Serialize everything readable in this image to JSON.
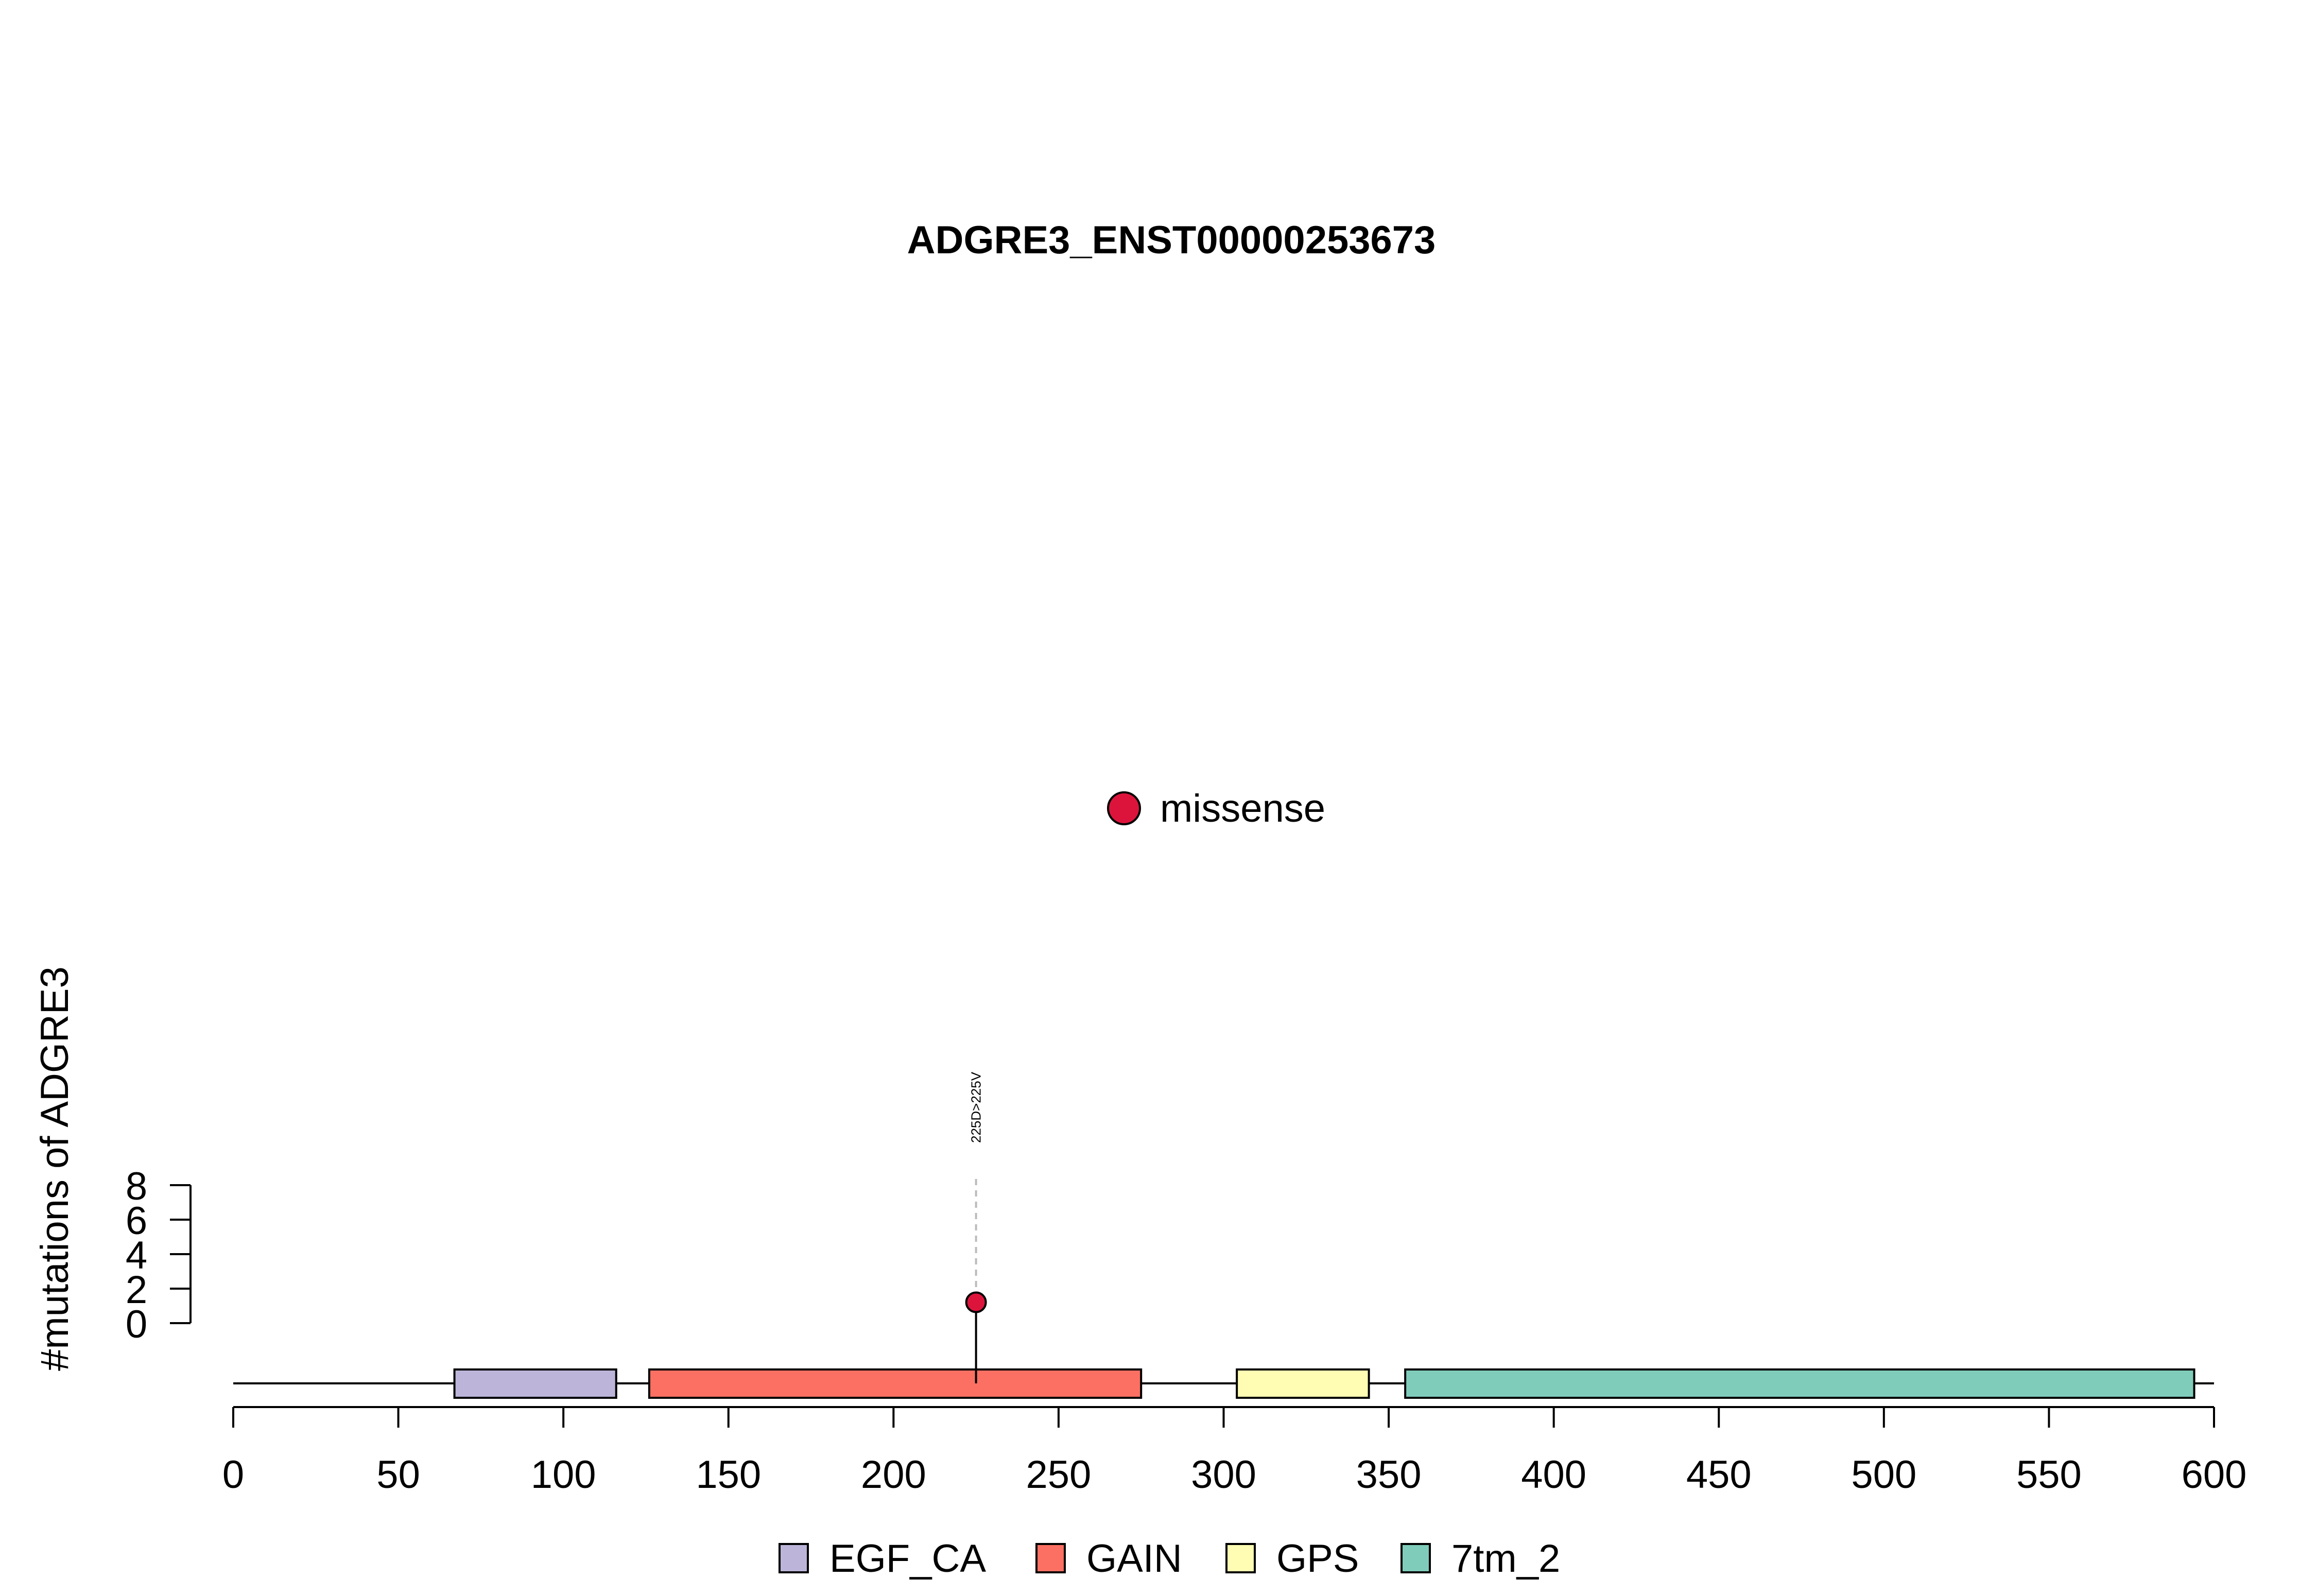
{
  "chart_data": {
    "type": "scatter",
    "title": "ADGRE3_ENST00000253673",
    "ylabel": "#mutations of ADGRE3",
    "xlabel": "",
    "xlim": [
      0,
      600
    ],
    "xticks": [
      0,
      50,
      100,
      150,
      200,
      250,
      300,
      350,
      400,
      450,
      500,
      550,
      600
    ],
    "ylim": [
      0,
      8
    ],
    "yticks": [
      0,
      2,
      4,
      6,
      8
    ],
    "protein_length": 600,
    "domains": [
      {
        "name": "EGF_CA",
        "start": 67,
        "end": 116,
        "color": "#bcb5d9"
      },
      {
        "name": "GAIN",
        "start": 126,
        "end": 275,
        "color": "#fb7062"
      },
      {
        "name": "GPS",
        "start": 304,
        "end": 344,
        "color": "#fefdb3"
      },
      {
        "name": "7tm_2",
        "start": 355,
        "end": 594,
        "color": "#80ccbb"
      }
    ],
    "mutations": [
      {
        "position": 225,
        "count": 1,
        "label": "225D>225V",
        "type": "missense",
        "color": "#dc143c"
      }
    ],
    "mutation_legend": [
      {
        "label": "missense",
        "color": "#dc143c"
      }
    ],
    "domain_legend": [
      {
        "label": "EGF_CA",
        "color": "#bcb5d9"
      },
      {
        "label": "GAIN",
        "color": "#fb7062"
      },
      {
        "label": "GPS",
        "color": "#fefdb3"
      },
      {
        "label": "7tm_2",
        "color": "#80ccbb"
      }
    ]
  }
}
